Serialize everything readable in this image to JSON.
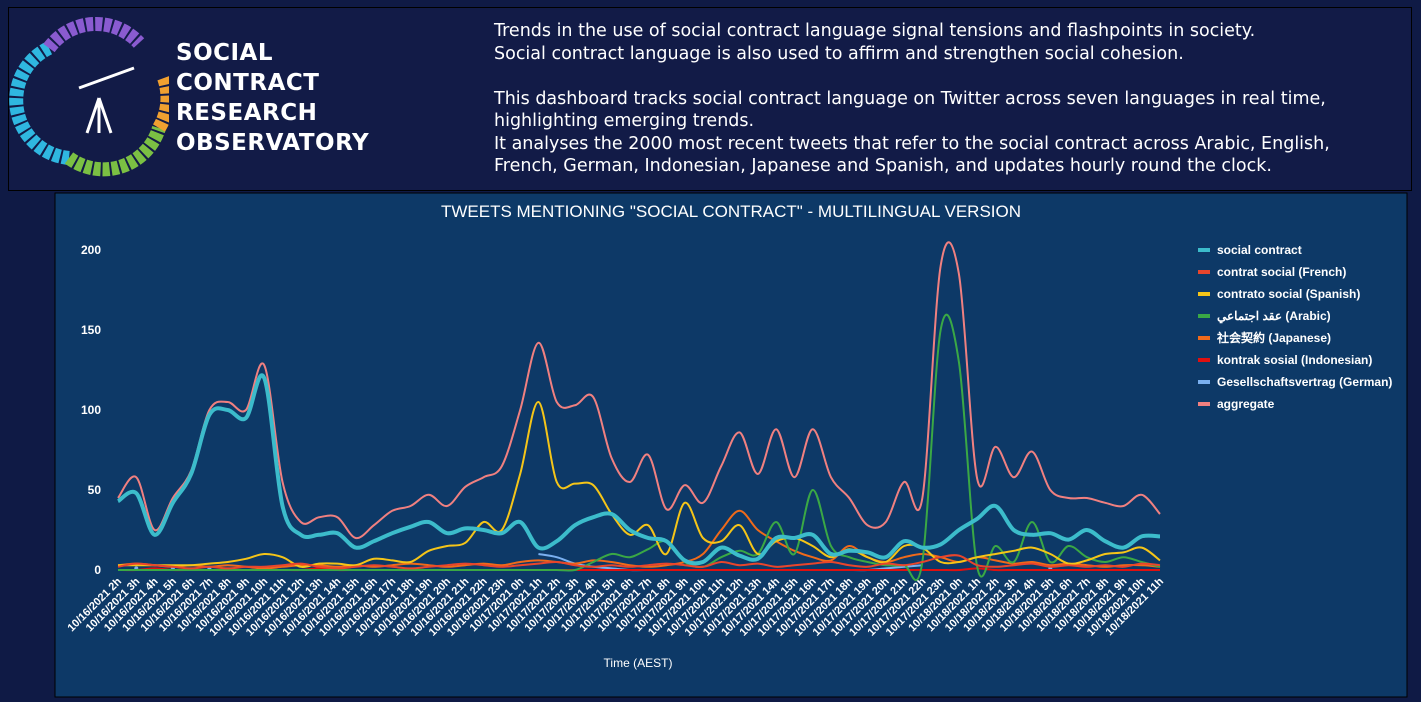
{
  "header": {
    "logo": [
      "SOCIAL",
      "CONTRACT",
      "RESEARCH",
      "OBSERVATORY"
    ],
    "intro": [
      "Trends in the use of social contract language signal tensions and flashpoints in society.",
      "Social contract language is also used to affirm and strengthen social cohesion."
    ],
    "description": [
      "This dashboard tracks social contract language on Twitter across seven languages in real time,",
      "highlighting emerging trends.",
      "It analyses the 2000 most recent tweets that refer to the social contract across Arabic, English,",
      "French, German, Indonesian, Japanese and Spanish, and updates hourly round the clock."
    ]
  },
  "chart_data": {
    "type": "line",
    "title": "TWEETS MENTIONING \"SOCIAL CONTRACT\" - MULTILINGUAL VERSION",
    "x_label": "Time (AEST)",
    "categories": [
      "10/16/2021 2h",
      "10/16/2021 3h",
      "10/16/2021 4h",
      "10/16/2021 5h",
      "10/16/2021 6h",
      "10/16/2021 7h",
      "10/16/2021 8h",
      "10/16/2021 9h",
      "10/16/2021 10h",
      "10/16/2021 11h",
      "10/16/2021 12h",
      "10/16/2021 13h",
      "10/16/2021 14h",
      "10/16/2021 15h",
      "10/16/2021 16h",
      "10/16/2021 17h",
      "10/16/2021 18h",
      "10/16/2021 19h",
      "10/16/2021 20h",
      "10/16/2021 21h",
      "10/16/2021 22h",
      "10/16/2021 23h",
      "10/17/2021 0h",
      "10/17/2021 1h",
      "10/17/2021 2h",
      "10/17/2021 3h",
      "10/17/2021 4h",
      "10/17/2021 5h",
      "10/17/2021 6h",
      "10/17/2021 7h",
      "10/17/2021 8h",
      "10/17/2021 9h",
      "10/17/2021 10h",
      "10/17/2021 11h",
      "10/17/2021 12h",
      "10/17/2021 13h",
      "10/17/2021 14h",
      "10/17/2021 15h",
      "10/17/2021 16h",
      "10/17/2021 17h",
      "10/17/2021 18h",
      "10/17/2021 19h",
      "10/17/2021 20h",
      "10/17/2021 21h",
      "10/17/2021 22h",
      "10/17/2021 23h",
      "10/18/2021 0h",
      "10/18/2021 1h",
      "10/18/2021 2h",
      "10/18/2021 3h",
      "10/18/2021 4h",
      "10/18/2021 5h",
      "10/18/2021 6h",
      "10/18/2021 7h",
      "10/18/2021 8h",
      "10/18/2021 9h",
      "10/18/2021 10h",
      "10/18/2021 11h"
    ],
    "ylim": [
      0,
      200
    ],
    "yticks": [
      0,
      50,
      100,
      150,
      200
    ],
    "grid": false,
    "legend": "right",
    "series": [
      {
        "name": "social contract",
        "color": "#3cbccb",
        "values": [
          43,
          48,
          22,
          42,
          60,
          97,
          100,
          95,
          120,
          40,
          22,
          22,
          23,
          14,
          18,
          23,
          27,
          30,
          23,
          26,
          25,
          23,
          30,
          14,
          18,
          28,
          33,
          35,
          25,
          20,
          18,
          6,
          5,
          14,
          9,
          7,
          20,
          20,
          22,
          10,
          12,
          11,
          8,
          18,
          14,
          16,
          25,
          32,
          40,
          25,
          22,
          23,
          19,
          25,
          18,
          14,
          21,
          21
        ]
      },
      {
        "name": "contrat social (French)",
        "color": "#e8452c",
        "values": [
          2,
          4,
          3,
          2,
          1,
          2,
          1,
          2,
          2,
          3,
          4,
          2,
          1,
          2,
          3,
          2,
          1,
          2,
          3,
          4,
          3,
          2,
          3,
          4,
          5,
          3,
          2,
          3,
          2,
          3,
          4,
          3,
          2,
          5,
          3,
          4,
          2,
          3,
          4,
          5,
          3,
          2,
          4,
          3,
          5,
          8,
          9,
          3,
          2,
          3,
          4,
          2,
          3,
          2,
          3,
          2,
          4,
          3
        ]
      },
      {
        "name": "contrato social (Spanish)",
        "color": "#f5c518",
        "values": [
          3,
          3,
          3,
          3,
          3,
          4,
          5,
          7,
          10,
          8,
          2,
          4,
          4,
          3,
          7,
          6,
          5,
          12,
          15,
          17,
          30,
          25,
          60,
          105,
          55,
          54,
          53,
          35,
          22,
          28,
          10,
          42,
          20,
          18,
          28,
          10,
          18,
          20,
          15,
          8,
          13,
          8,
          5,
          15,
          14,
          5,
          5,
          8,
          10,
          12,
          14,
          10,
          4,
          6,
          10,
          11,
          14,
          6
        ]
      },
      {
        "name": "عقد اجتماعي (Arabic)",
        "color": "#3aa845",
        "values": [
          0,
          0,
          0,
          0,
          0,
          0,
          0,
          0,
          0,
          0,
          0,
          0,
          0,
          0,
          0,
          0,
          0,
          0,
          0,
          0,
          0,
          0,
          0,
          0,
          0,
          0,
          5,
          10,
          8,
          13,
          18,
          5,
          2,
          8,
          12,
          10,
          30,
          10,
          50,
          15,
          8,
          5,
          3,
          3,
          5,
          150,
          130,
          2,
          15,
          5,
          30,
          5,
          15,
          8,
          5,
          8,
          5,
          2
        ]
      },
      {
        "name": "社会契約 (Japanese)",
        "color": "#f06a1a",
        "values": [
          3,
          4,
          3,
          2,
          3,
          2,
          3,
          2,
          1,
          2,
          3,
          3,
          2,
          3,
          2,
          3,
          4,
          3,
          2,
          3,
          4,
          3,
          5,
          6,
          5,
          4,
          6,
          5,
          3,
          2,
          3,
          5,
          10,
          25,
          37,
          25,
          18,
          12,
          8,
          6,
          15,
          8,
          5,
          8,
          10,
          8,
          5,
          8,
          6,
          4,
          5,
          3,
          4,
          3,
          2,
          3,
          3,
          2
        ]
      },
      {
        "name": "kontrak sosial (Indonesian)",
        "color": "#e01010",
        "values": [
          0,
          0,
          1,
          0,
          0,
          0,
          0,
          0,
          0,
          0,
          0,
          1,
          0,
          0,
          0,
          0,
          0,
          0,
          0,
          0,
          0,
          0,
          0,
          0,
          0,
          0,
          0,
          0,
          0,
          0,
          0,
          0,
          0,
          0,
          0,
          0,
          0,
          0,
          0,
          0,
          0,
          0,
          0,
          0,
          0,
          0,
          0,
          1,
          0,
          0,
          0,
          0,
          0,
          0,
          0,
          0,
          0,
          0
        ]
      },
      {
        "name": "Gesellschaftsvertrag (German)",
        "color": "#7ab0f0",
        "values": [
          null,
          1,
          null,
          1,
          null,
          1,
          null,
          null,
          null,
          null,
          null,
          null,
          null,
          null,
          null,
          null,
          null,
          null,
          null,
          null,
          null,
          null,
          null,
          10,
          8,
          4,
          2,
          1,
          0,
          0,
          null,
          null,
          null,
          null,
          null,
          null,
          null,
          null,
          null,
          null,
          0,
          0,
          1,
          2,
          3,
          null,
          null,
          null,
          null,
          null,
          null,
          1,
          null,
          null,
          null,
          null,
          null,
          null
        ]
      },
      {
        "name": "aggregate",
        "color": "#f08080",
        "values": [
          45,
          58,
          25,
          45,
          62,
          100,
          105,
          100,
          128,
          55,
          30,
          33,
          33,
          20,
          28,
          37,
          40,
          47,
          40,
          52,
          58,
          65,
          100,
          142,
          105,
          103,
          108,
          70,
          55,
          72,
          38,
          53,
          42,
          65,
          86,
          60,
          88,
          58,
          88,
          58,
          45,
          28,
          30,
          55,
          45,
          190,
          185,
          57,
          77,
          58,
          74,
          50,
          45,
          45,
          42,
          40,
          47,
          35
        ]
      }
    ]
  }
}
